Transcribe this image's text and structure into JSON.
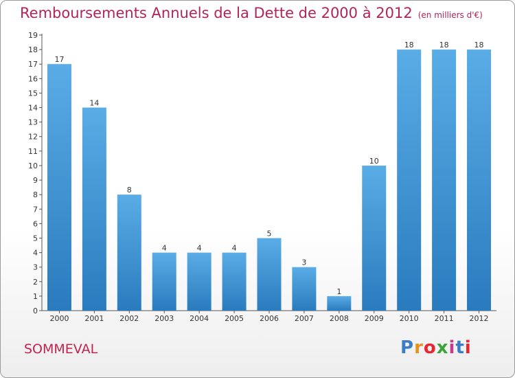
{
  "title": "Remboursements Annuels de la Dette de 2000 à 2012",
  "unit": "(en milliers d'€)",
  "commune": "SOMMEVAL",
  "logo": {
    "letters": [
      "P",
      "r",
      "o",
      "x",
      "i",
      "t",
      "i"
    ],
    "colors": [
      "#3a7fc4",
      "#e88f1e",
      "#e8262f",
      "#3aa43a",
      "#c83a8a",
      "#3a7fc4",
      "#e8262f"
    ]
  },
  "colors": {
    "bar": "#2a7bbd",
    "bar_light": "#5aace6",
    "title": "#b0245a"
  },
  "chart_data": {
    "type": "bar",
    "title": "Remboursements Annuels de la Dette de 2000 à 2012",
    "subtitle": "(en milliers d'€)",
    "xlabel": "",
    "ylabel": "",
    "categories": [
      "2000",
      "2001",
      "2002",
      "2003",
      "2004",
      "2005",
      "2006",
      "2007",
      "2008",
      "2009",
      "2010",
      "2011",
      "2012"
    ],
    "values": [
      17,
      14,
      8,
      4,
      4,
      4,
      5,
      3,
      1,
      10,
      18,
      18,
      18
    ],
    "ylim": [
      0,
      19
    ],
    "yticks": [
      0,
      1,
      2,
      3,
      4,
      5,
      6,
      7,
      8,
      9,
      10,
      11,
      12,
      13,
      14,
      15,
      16,
      17,
      18,
      19
    ],
    "grid": false,
    "legend": "none"
  }
}
